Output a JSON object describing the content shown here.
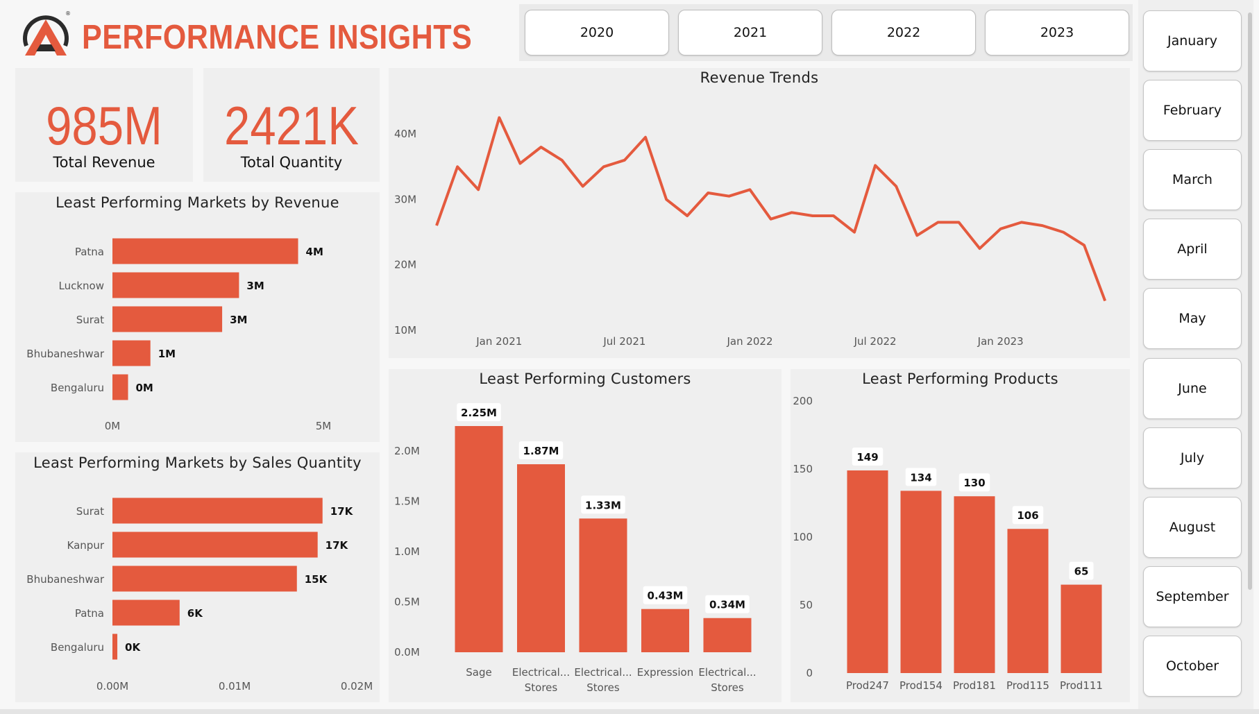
{
  "header": {
    "title": "PERFORMANCE INSIGHTS",
    "logo_registered": "®"
  },
  "year_filter": [
    "2020",
    "2021",
    "2022",
    "2023"
  ],
  "month_filter": [
    "January",
    "February",
    "March",
    "April",
    "May",
    "June",
    "July",
    "August",
    "September",
    "October"
  ],
  "kpis": {
    "total_revenue": {
      "value": "985M",
      "label": "Total Revenue"
    },
    "total_quantity": {
      "value": "2421K",
      "label": "Total Quantity"
    }
  },
  "colors": {
    "accent": "#E45A3E",
    "panel": "#efefef",
    "background": "#f7f7f7"
  },
  "chart_data": [
    {
      "id": "markets_revenue",
      "type": "bar",
      "orientation": "horizontal",
      "title": "Least Performing Markets by Revenue",
      "categories": [
        "Patna",
        "Lucknow",
        "Surat",
        "Bhubaneshwar",
        "Bengaluru"
      ],
      "values": [
        4.4,
        3.0,
        2.6,
        0.9,
        0.37
      ],
      "data_labels": [
        "4M",
        "3M",
        "3M",
        "1M",
        "0M"
      ],
      "xlim": [
        0,
        5
      ],
      "x_ticks": [
        0,
        5
      ],
      "x_tick_labels": [
        "0M",
        "5M"
      ]
    },
    {
      "id": "markets_quantity",
      "type": "bar",
      "orientation": "horizontal",
      "title": "Least Performing Markets by Sales Quantity",
      "categories": [
        "Surat",
        "Kanpur",
        "Bhubaneshwar",
        "Patna",
        "Bengaluru"
      ],
      "values": [
        17.2,
        16.8,
        15.1,
        5.5,
        0.4
      ],
      "data_labels": [
        "17K",
        "17K",
        "15K",
        "6K",
        "0K"
      ],
      "xlim": [
        0,
        20
      ],
      "x_ticks": [
        0,
        10,
        20
      ],
      "x_tick_labels": [
        "0.00M",
        "0.01M",
        "0.02M"
      ]
    },
    {
      "id": "revenue_trends",
      "type": "line",
      "title": "Revenue Trends",
      "x_tick_labels": [
        "Jan 2021",
        "Jul 2021",
        "Jan 2022",
        "Jul 2022",
        "Jan 2023"
      ],
      "y_ticks": [
        10,
        20,
        30,
        40
      ],
      "y_tick_labels": [
        "10M",
        "20M",
        "30M",
        "40M"
      ],
      "ylim": [
        8,
        46
      ],
      "x": [
        "2020-10",
        "2020-11",
        "2020-12",
        "2021-01",
        "2021-02",
        "2021-03",
        "2021-04",
        "2021-05",
        "2021-06",
        "2021-07",
        "2021-08",
        "2021-09",
        "2021-10",
        "2021-11",
        "2021-12",
        "2022-01",
        "2022-02",
        "2022-03",
        "2022-04",
        "2022-05",
        "2022-06",
        "2022-07",
        "2022-08",
        "2022-09",
        "2022-10",
        "2022-11",
        "2022-12",
        "2023-01",
        "2023-02",
        "2023-03",
        "2023-04",
        "2023-05",
        "2023-06"
      ],
      "values": [
        26,
        35,
        31.5,
        42.5,
        35.5,
        38,
        36,
        32,
        35,
        36,
        39.5,
        30,
        27.5,
        31,
        30.5,
        31.5,
        27,
        28,
        27.5,
        27.5,
        25,
        35.2,
        32,
        24.5,
        26.5,
        26.5,
        22.5,
        25.5,
        26.5,
        26,
        25,
        23,
        14.5
      ]
    },
    {
      "id": "customers",
      "type": "bar",
      "title": "Least Performing Customers",
      "categories": [
        "Sage",
        "Electrical... Stores",
        "Electrical... Stores",
        "Expression",
        "Electrical... Stores"
      ],
      "category_lines": [
        [
          "Sage"
        ],
        [
          "Electrical...",
          "Stores"
        ],
        [
          "Electrical...",
          "Stores"
        ],
        [
          "Expression"
        ],
        [
          "Electrical...",
          "Stores"
        ]
      ],
      "values": [
        2.25,
        1.87,
        1.33,
        0.43,
        0.34
      ],
      "data_labels": [
        "2.25M",
        "1.87M",
        "1.33M",
        "0.43M",
        "0.34M"
      ],
      "ylim": [
        0,
        2.25
      ],
      "y_ticks": [
        0,
        0.5,
        1.0,
        1.5,
        2.0
      ],
      "y_tick_labels": [
        "0.0M",
        "0.5M",
        "1.0M",
        "1.5M",
        "2.0M"
      ]
    },
    {
      "id": "products",
      "type": "bar",
      "title": "Least Performing Products",
      "categories": [
        "Prod247",
        "Prod154",
        "Prod181",
        "Prod115",
        "Prod111"
      ],
      "values": [
        149,
        134,
        130,
        106,
        65
      ],
      "data_labels": [
        "149",
        "134",
        "130",
        "106",
        "65"
      ],
      "ylim": [
        0,
        200
      ],
      "y_ticks": [
        0,
        50,
        100,
        150,
        200
      ],
      "y_tick_labels": [
        "0",
        "50",
        "100",
        "150",
        "200"
      ]
    }
  ]
}
